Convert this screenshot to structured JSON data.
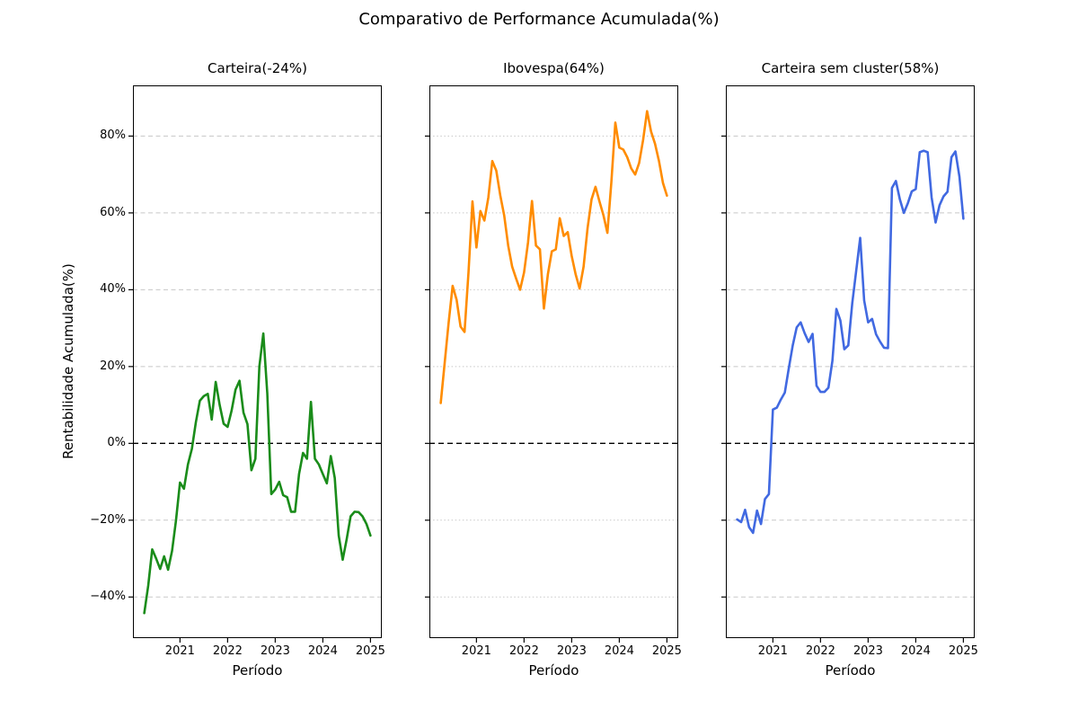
{
  "figure": {
    "title": "Comparativo de Performance Acumulada(%)",
    "ylabel": "Rentabilidade Acumulada(%)",
    "xlabel": "Período",
    "background": "#ffffff",
    "text_color": "#000000",
    "grid_color": "#c8c8c8",
    "zero_line_color": "#000000"
  },
  "axis": {
    "y_tick_labels": [
      "80%",
      "60%",
      "40%",
      "20%",
      "0%",
      "−20%",
      "−40%"
    ],
    "y_tick_values": [
      80,
      60,
      40,
      20,
      0,
      -20,
      -40
    ],
    "x_tick_labels": [
      "2021",
      "2022",
      "2023",
      "2024",
      "2025"
    ],
    "x_tick_month_indices": [
      9,
      21,
      33,
      45,
      57
    ],
    "ylim": [
      -50.7,
      93.2
    ],
    "zero_line": true,
    "grid_on": true
  },
  "chart_data": [
    {
      "type": "line",
      "name": "carteira",
      "title": "Carteira(-24%)",
      "final_value_pct": -24,
      "color": "#1a8c1a",
      "grid_style": "dashed",
      "x_start": "2020-04",
      "x_freq": "monthly",
      "values": [
        -44.2,
        -37,
        -27.6,
        -30,
        -32.7,
        -29.4,
        -32.9,
        -28,
        -20,
        -10.2,
        -11.8,
        -5.5,
        -1.4,
        5.5,
        11.1,
        12.3,
        12.9,
        6.2,
        16,
        10,
        5.1,
        4.3,
        8.5,
        14,
        16.3,
        8,
        5,
        -7,
        -4,
        20,
        28.6,
        13,
        -13.2,
        -12,
        -10,
        -13.5,
        -14,
        -17.8,
        -17.8,
        -8,
        -2.5,
        -4,
        10.8,
        -4,
        -5.5,
        -8,
        -10.4,
        -3.3,
        -9,
        -24,
        -30.3,
        -25,
        -19,
        -17.8,
        -17.9,
        -19,
        -21,
        -24
      ]
    },
    {
      "type": "line",
      "name": "ibovespa",
      "title": "Ibovespa(64%)",
      "final_value_pct": 64,
      "color": "#ff8c00",
      "grid_style": "dotted",
      "x_start": "2020-04",
      "x_freq": "monthly",
      "values": [
        10.5,
        21,
        31.5,
        41,
        37.4,
        30.4,
        29,
        44.5,
        63,
        51,
        60.5,
        58,
        64,
        73.5,
        71,
        64.6,
        59.3,
        51.5,
        46,
        42.9,
        40,
        44.5,
        52.3,
        63.1,
        51.5,
        50.5,
        35.1,
        44,
        50,
        50.5,
        58.6,
        54,
        55,
        48.8,
        44,
        40.3,
        46,
        56,
        63.5,
        66.8,
        63,
        59.4,
        54.8,
        68,
        83.5,
        77,
        76.5,
        74.5,
        71.6,
        70,
        73,
        79,
        86.5,
        81.2,
        78,
        73.5,
        67.8,
        64.5
      ]
    },
    {
      "type": "line",
      "name": "carteira-sem-cluster",
      "title": "Carteira sem cluster(58%)",
      "final_value_pct": 58,
      "color": "#4169e1",
      "grid_style": "dashed",
      "x_start": "2020-04",
      "x_freq": "monthly",
      "values": [
        -19.8,
        -20.5,
        -17.3,
        -21.8,
        -23.3,
        -17.5,
        -21,
        -14.5,
        -13.2,
        8.8,
        9.3,
        11.4,
        13.2,
        19.5,
        25.5,
        30.2,
        31.5,
        28.7,
        26.4,
        28.5,
        15,
        13.4,
        13.4,
        14.5,
        21.5,
        35,
        32,
        24.5,
        25.5,
        36.5,
        45,
        53.5,
        37.2,
        31.5,
        32.4,
        28.4,
        26.5,
        24.9,
        24.8,
        66.5,
        68.3,
        63.5,
        60,
        62.5,
        65.6,
        66.2,
        75.8,
        76.2,
        75.8,
        64,
        57.5,
        62,
        64.3,
        65.5,
        74.5,
        76,
        69.5,
        58.5
      ]
    }
  ]
}
